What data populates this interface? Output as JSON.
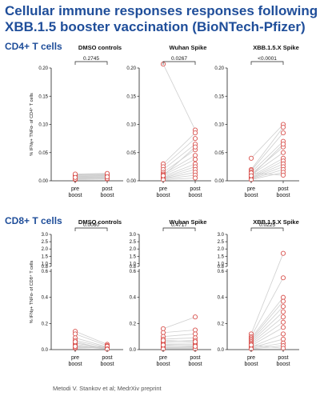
{
  "title_line1": "Cellular immune responses responses following",
  "title_line2": "XBB.1.5 booster vaccination (BioNTech-Pfizer)",
  "footer": "Metodi V. Stankov et al; MedrXiv preprint",
  "colors": {
    "title": "#1f4e9a",
    "marker": "#d9534f",
    "line": "#cfcfcf"
  },
  "chart_data": [
    {
      "type": "scatter",
      "section": "CD4+ T cells",
      "title": "DMSO controls",
      "ylabel": "% IFNγ+ TNFα- of CD4⁺ T cells",
      "ylim": [
        0,
        0.2
      ],
      "yticks": [
        "0.00",
        "0.05",
        "0.10",
        "0.15",
        "0.20"
      ],
      "categories": [
        "pre boost",
        "post boost"
      ],
      "p_value": "0.2745",
      "pre": [
        0.002,
        0.004,
        0.005,
        0.006,
        0.007,
        0.008,
        0.009,
        0.01,
        0.011,
        0.012,
        0.003,
        0.006
      ],
      "post": [
        0.003,
        0.005,
        0.006,
        0.007,
        0.008,
        0.009,
        0.01,
        0.011,
        0.012,
        0.013,
        0.004,
        0.007
      ]
    },
    {
      "type": "scatter",
      "section": "CD4+ T cells",
      "title": "Wuhan Spike",
      "ylim": [
        0,
        0.2
      ],
      "yticks": [
        "0.00",
        "0.05",
        "0.10",
        "0.15",
        "0.20"
      ],
      "categories": [
        "pre boost",
        "post boost"
      ],
      "p_value": "0.0267",
      "pre": [
        0.207,
        0.03,
        0.025,
        0.02,
        0.015,
        0.012,
        0.01,
        0.008,
        0.006,
        0.005,
        0.004,
        0.003,
        0.002,
        0.009
      ],
      "post": [
        0.09,
        0.085,
        0.075,
        0.065,
        0.055,
        0.045,
        0.038,
        0.03,
        0.025,
        0.02,
        0.015,
        0.01,
        0.005,
        0.06
      ]
    },
    {
      "type": "scatter",
      "section": "CD4+ T cells",
      "title": "XBB.1.5.X Spike",
      "ylim": [
        0,
        0.2
      ],
      "yticks": [
        "0.00",
        "0.05",
        "0.10",
        "0.15",
        "0.20"
      ],
      "categories": [
        "pre boost",
        "post boost"
      ],
      "p_value": "<0.0001",
      "pre": [
        0.04,
        0.02,
        0.018,
        0.015,
        0.012,
        0.01,
        0.008,
        0.006,
        0.005,
        0.004,
        0.003,
        0.002,
        0.014,
        0.009
      ],
      "post": [
        0.1,
        0.095,
        0.085,
        0.07,
        0.06,
        0.05,
        0.04,
        0.035,
        0.03,
        0.025,
        0.02,
        0.015,
        0.01,
        0.065
      ]
    },
    {
      "type": "scatter",
      "section": "CD8+ T cells",
      "title": "DMSO controls",
      "ylabel": "% IFNγ+ TNFα- of CD8⁺ T cells",
      "ylim": [
        0,
        3.0
      ],
      "yticks": [
        "0.0",
        "0.2",
        "0.4",
        "0.6",
        "0.8",
        "1.0",
        "1.5",
        "2.0",
        "2.5",
        "3.0"
      ],
      "categories": [
        "pre boost",
        "post boost"
      ],
      "p_value": "0.0060",
      "pre": [
        0.14,
        0.12,
        0.09,
        0.07,
        0.05,
        0.04,
        0.03,
        0.02,
        0.01,
        0.015,
        0.025,
        0.06
      ],
      "post": [
        0.04,
        0.03,
        0.02,
        0.015,
        0.01,
        0.008,
        0.005,
        0.012,
        0.018,
        0.025,
        0.006,
        0.003
      ]
    },
    {
      "type": "scatter",
      "section": "CD8+ T cells",
      "title": "Wuhan Spike",
      "ylim": [
        0,
        3.0
      ],
      "yticks": [
        "0.0",
        "0.2",
        "0.4",
        "0.6",
        "0.8",
        "1.0",
        "1.5",
        "2.0",
        "2.5",
        "3.0"
      ],
      "categories": [
        "pre boost",
        "post boost"
      ],
      "p_value": "0.4717",
      "pre": [
        0.16,
        0.13,
        0.1,
        0.08,
        0.06,
        0.05,
        0.04,
        0.03,
        0.02,
        0.015,
        0.01,
        0.005,
        0.07,
        0.035
      ],
      "post": [
        0.25,
        0.15,
        0.12,
        0.09,
        0.07,
        0.05,
        0.04,
        0.03,
        0.02,
        0.015,
        0.01,
        0.005,
        0.06,
        0.025
      ]
    },
    {
      "type": "scatter",
      "section": "CD8+ T cells",
      "title": "XBB.1.5.X Spike",
      "ylim": [
        0,
        3.0
      ],
      "yticks": [
        "0.0",
        "0.2",
        "0.4",
        "0.6",
        "0.8",
        "1.0",
        "1.5",
        "2.0",
        "2.5",
        "3.0"
      ],
      "categories": [
        "pre boost",
        "post boost"
      ],
      "p_value": "0.0225",
      "pre": [
        0.12,
        0.1,
        0.09,
        0.08,
        0.07,
        0.06,
        0.05,
        0.04,
        0.03,
        0.02,
        0.015,
        0.01,
        0.005,
        0.035
      ],
      "post": [
        1.7,
        0.55,
        0.4,
        0.37,
        0.33,
        0.29,
        0.25,
        0.21,
        0.17,
        0.12,
        0.08,
        0.05,
        0.03,
        0.01
      ]
    }
  ]
}
